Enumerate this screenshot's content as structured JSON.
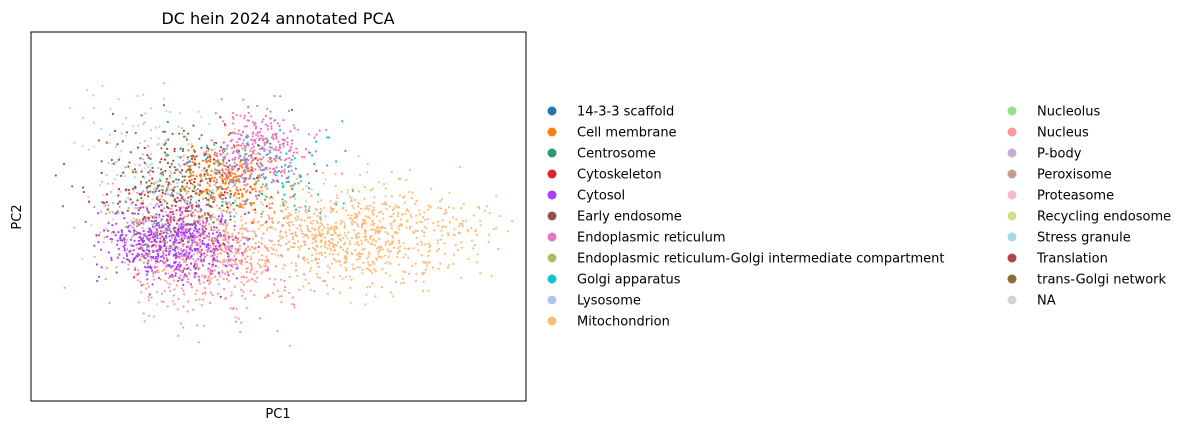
{
  "chart_data": {
    "type": "scatter",
    "title": "DC hein 2024 annotated PCA",
    "xlabel": "PC1",
    "ylabel": "PC2",
    "xlim": [
      -10,
      10
    ],
    "ylim": [
      -10,
      10
    ],
    "ticks_visible": false,
    "grid": false,
    "legend_placement": "right, two columns",
    "point_size": "small",
    "series": [
      {
        "name": "14-3-3 scaffold",
        "color": "#1f77b4",
        "n": 8,
        "cx": -2.2,
        "cy": 0.6,
        "sx": 0.8,
        "sy": 0.6
      },
      {
        "name": "Cell membrane",
        "color": "#ff7f0e",
        "n": 260,
        "cx": -2.0,
        "cy": 2.0,
        "sx": 0.9,
        "sy": 0.9
      },
      {
        "name": "Centrosome",
        "color": "#279e68",
        "n": 40,
        "cx": -3.8,
        "cy": 0.8,
        "sx": 1.6,
        "sy": 1.6
      },
      {
        "name": "Cytoskeleton",
        "color": "#d62728",
        "n": 120,
        "cx": -4.0,
        "cy": 1.0,
        "sx": 1.6,
        "sy": 1.5
      },
      {
        "name": "Cytosol",
        "color": "#aa40fc",
        "n": 700,
        "cx": -4.2,
        "cy": -1.4,
        "sx": 1.3,
        "sy": 1.0
      },
      {
        "name": "Early endosome",
        "color": "#8c564b",
        "n": 90,
        "cx": -4.2,
        "cy": 2.6,
        "sx": 1.6,
        "sy": 1.4
      },
      {
        "name": "Endoplasmic reticulum",
        "color": "#e377c2",
        "n": 340,
        "cx": -0.8,
        "cy": 3.5,
        "sx": 0.9,
        "sy": 1.1
      },
      {
        "name": "Endoplasmic reticulum-Golgi intermediate compartment",
        "color": "#b5bd61",
        "n": 40,
        "cx": -4.8,
        "cy": 0.0,
        "sx": 1.4,
        "sy": 1.6
      },
      {
        "name": "Golgi apparatus",
        "color": "#17becf",
        "n": 100,
        "cx": -0.2,
        "cy": 2.3,
        "sx": 1.5,
        "sy": 1.3
      },
      {
        "name": "Lysosome",
        "color": "#aec7e8",
        "n": 40,
        "cx": -4.6,
        "cy": 1.4,
        "sx": 1.7,
        "sy": 1.7
      },
      {
        "name": "Mitochondrion",
        "color": "#ffbb78",
        "n": 900,
        "cx": 2.9,
        "cy": -0.9,
        "sx": 2.6,
        "sy": 1.4
      },
      {
        "name": "Nucleolus",
        "color": "#98df8a",
        "n": 6,
        "cx": -4.5,
        "cy": -2.0,
        "sx": 1.5,
        "sy": 2.0
      },
      {
        "name": "Nucleus",
        "color": "#ff9896",
        "n": 450,
        "cx": -2.6,
        "cy": -2.6,
        "sx": 1.8,
        "sy": 1.5
      },
      {
        "name": "P-body",
        "color": "#c5b0d5",
        "n": 30,
        "cx": -4.4,
        "cy": 0.6,
        "sx": 1.6,
        "sy": 1.6
      },
      {
        "name": "Peroxisome",
        "color": "#c49c94",
        "n": 60,
        "cx": -5.0,
        "cy": -0.6,
        "sx": 1.2,
        "sy": 1.2
      },
      {
        "name": "Proteasome",
        "color": "#f7b6d2",
        "n": 50,
        "cx": -4.4,
        "cy": -0.4,
        "sx": 1.6,
        "sy": 1.6
      },
      {
        "name": "Recycling endosome",
        "color": "#dbdb8d",
        "n": 20,
        "cx": -4.4,
        "cy": 1.0,
        "sx": 1.6,
        "sy": 1.6
      },
      {
        "name": "Stress granule",
        "color": "#9edae5",
        "n": 80,
        "cx": -5.4,
        "cy": 3.6,
        "sx": 1.3,
        "sy": 1.8
      },
      {
        "name": "Translation",
        "color": "#ad494a",
        "n": 60,
        "cx": -4.3,
        "cy": 0.4,
        "sx": 1.6,
        "sy": 1.6
      },
      {
        "name": "trans-Golgi network",
        "color": "#8c6d31",
        "n": 80,
        "cx": -3.6,
        "cy": 2.3,
        "sx": 1.5,
        "sy": 1.3
      },
      {
        "name": "NA",
        "color": "#d3d3d3",
        "n": 90,
        "cx": -3.2,
        "cy": 1.4,
        "sx": 2.4,
        "sy": 2.3
      }
    ]
  }
}
